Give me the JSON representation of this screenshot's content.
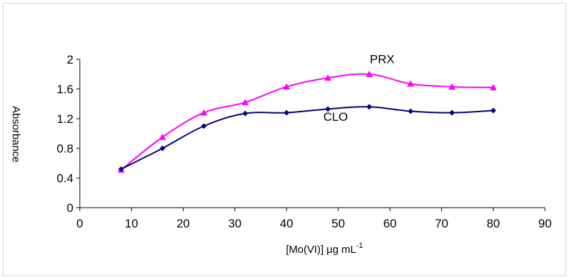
{
  "chart_data": {
    "type": "line",
    "title": "",
    "xlabel": "[Mo(VI)]  µg mL",
    "xlabel_superscript": "-1",
    "ylabel": "Absorbance",
    "xlim": [
      0,
      90
    ],
    "ylim": [
      0,
      2
    ],
    "x_ticks": [
      "0",
      "10",
      "20",
      "30",
      "40",
      "50",
      "60",
      "70",
      "80",
      "90"
    ],
    "y_ticks": [
      "0",
      "0.4",
      "0.8",
      "1.2",
      "1.6",
      "2"
    ],
    "grid": false,
    "legend": "inline labels",
    "series": [
      {
        "name": "PRX",
        "color": "#ff00ff",
        "marker": "triangle",
        "x": [
          8,
          16,
          24,
          32,
          40,
          48,
          56,
          64,
          72,
          80
        ],
        "y": [
          0.51,
          0.95,
          1.28,
          1.42,
          1.63,
          1.75,
          1.8,
          1.67,
          1.63,
          1.62
        ]
      },
      {
        "name": "CLO",
        "color": "#000080",
        "marker": "diamond",
        "x": [
          8,
          16,
          24,
          32,
          40,
          48,
          56,
          64,
          72,
          80
        ],
        "y": [
          0.52,
          0.8,
          1.1,
          1.27,
          1.28,
          1.33,
          1.36,
          1.3,
          1.28,
          1.31
        ]
      }
    ]
  }
}
